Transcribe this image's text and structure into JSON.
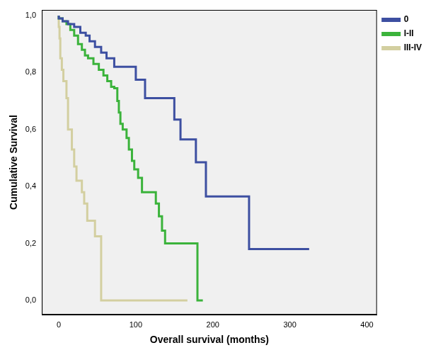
{
  "chart_data": {
    "type": "line",
    "x_label": "Overall survival (months)",
    "y_label": "Cumulative Survival",
    "xlim": [
      -22,
      413
    ],
    "xticks": [
      0,
      100,
      200,
      300,
      400
    ],
    "ylim": [
      -0.05,
      1.02
    ],
    "yticks": [
      {
        "value": 0,
        "label": "0,0"
      },
      {
        "value": 0.2,
        "label": "0,2"
      },
      {
        "value": 0.4,
        "label": "0,4"
      },
      {
        "value": 0.6,
        "label": "0,6"
      },
      {
        "value": 0.8,
        "label": "0,8"
      },
      {
        "value": 1,
        "label": "1,0"
      }
    ],
    "grid": false,
    "legend": "top right",
    "line_style": "step",
    "series": [
      {
        "name": "0",
        "color": "#3d4fa1",
        "x": [
          0,
          5,
          12,
          20,
          28,
          35,
          40,
          47,
          55,
          62,
          72,
          100,
          112,
          150,
          158,
          178,
          191,
          247,
          296,
          325
        ],
        "values": [
          1,
          0.99,
          0.98,
          0.97,
          0.96,
          0.94,
          0.93,
          0.91,
          0.89,
          0.87,
          0.85,
          0.82,
          0.775,
          0.71,
          0.635,
          0.565,
          0.485,
          0.365,
          0.18,
          0.18
        ]
      },
      {
        "name": "I-II",
        "color": "#3bb33b",
        "x": [
          0,
          5,
          10,
          15,
          20,
          25,
          30,
          34,
          38,
          45,
          52,
          58,
          63,
          68,
          72,
          76,
          78,
          80,
          83,
          88,
          91,
          95,
          98,
          103,
          108,
          126,
          130,
          134,
          138,
          180,
          187
        ],
        "values": [
          1,
          0.99,
          0.98,
          0.97,
          0.95,
          0.93,
          0.9,
          0.88,
          0.86,
          0.85,
          0.83,
          0.81,
          0.79,
          0.77,
          0.75,
          0.745,
          0.7,
          0.66,
          0.62,
          0.6,
          0.57,
          0.53,
          0.49,
          0.46,
          0.43,
          0.38,
          0.34,
          0.295,
          0.245,
          0.2,
          0
        ]
      },
      {
        "name": "III-IV",
        "color": "#d3cfa0",
        "x": [
          0,
          1,
          2,
          4,
          6,
          10,
          12,
          17,
          20,
          23,
          30,
          33,
          37,
          47,
          55,
          167
        ],
        "values": [
          1,
          0.96,
          0.92,
          0.85,
          0.81,
          0.77,
          0.71,
          0.6,
          0.53,
          0.47,
          0.42,
          0.38,
          0.34,
          0.28,
          0.225,
          0
        ]
      }
    ]
  }
}
